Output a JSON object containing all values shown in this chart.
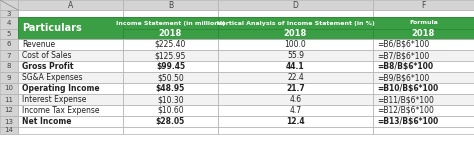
{
  "col_letters": [
    "A",
    "B",
    "D",
    "F"
  ],
  "row_nums": [
    "3",
    "4",
    "5",
    "6",
    "7",
    "8",
    "9",
    "10",
    "11",
    "12",
    "13",
    "14"
  ],
  "rows": [
    [
      "Revenue",
      "$225.40",
      "100.0",
      "=B6/B$6*100"
    ],
    [
      "Cost of Sales",
      "$125.95",
      "55.9",
      "=B7/B$6*100"
    ],
    [
      "Gross Profit",
      "$99.45",
      "44.1",
      "=B8/B$6*100"
    ],
    [
      "SG&A Expenses",
      "$50.50",
      "22.4",
      "=B9/B$6*100"
    ],
    [
      "Operating Income",
      "$48.95",
      "21.7",
      "=B10/B$6*100"
    ],
    [
      "Interest Expense",
      "$10.30",
      "4.6",
      "=B11/B$6*100"
    ],
    [
      "Income Tax Expense",
      "$10.60",
      "4.7",
      "=B12/B$6*100"
    ],
    [
      "Net Income",
      "$28.05",
      "12.4",
      "=B13/B$6*100"
    ]
  ],
  "bold_rows": [
    2,
    4,
    7
  ],
  "header_bg": "#3A9E44",
  "header_fg": "#FFFFFF",
  "header_line1": [
    "Particulars",
    "Income Statement (in millions)",
    "Vertical Analysis of Income Statement (in %)",
    "Formula"
  ],
  "header_line2": [
    "",
    "2018",
    "2018",
    "2018"
  ],
  "col_letter_bg": "#D4D4D4",
  "col_letter_fg": "#444444",
  "row_num_bg": "#D4D4D4",
  "row_num_fg": "#444444",
  "border_color": "#B0B0B0",
  "cell_bg_white": "#FFFFFF",
  "cell_bg_gray": "#F2F2F2",
  "text_color": "#222222",
  "fig_bg": "#FFFFFF"
}
